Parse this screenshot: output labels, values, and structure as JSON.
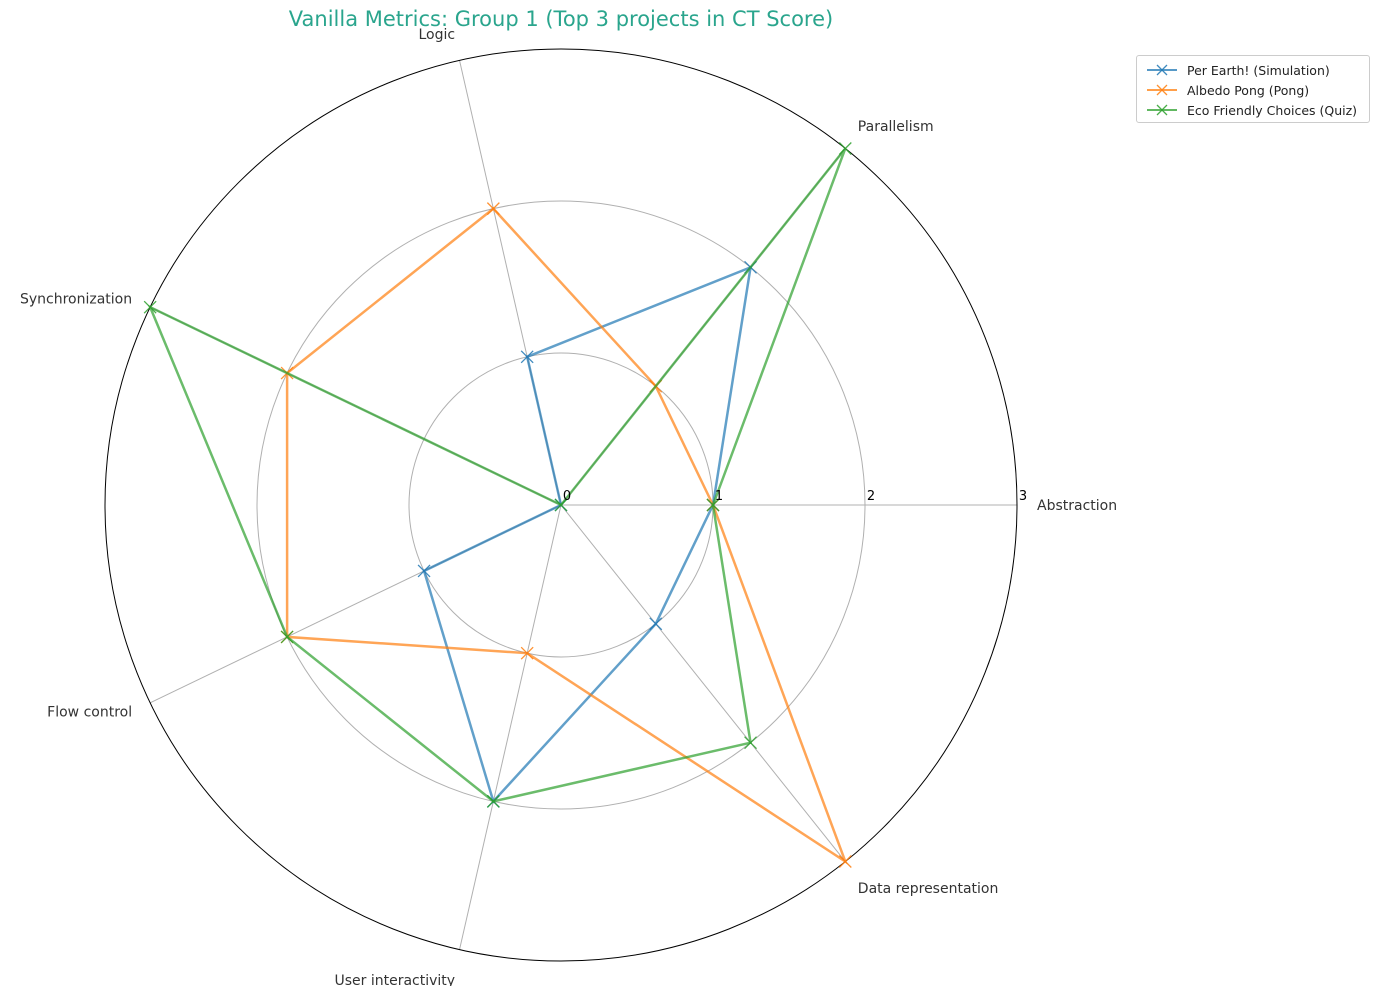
{
  "chart_data": {
    "type": "radar",
    "title": "Vanilla Metrics: Group 1 (Top 3 projects in CT Score)",
    "title_color": "#2aa58d",
    "categories": [
      "Abstraction",
      "Parallelism",
      "Logic",
      "Synchronization",
      "Flow control",
      "User interactivity",
      "Data representation"
    ],
    "rlim": [
      0,
      3
    ],
    "rticks": [
      "0",
      "1",
      "2",
      "3"
    ],
    "grid": true,
    "legend_position": "upper right, outside",
    "series": [
      {
        "name": "Per Earth! (Simulation)",
        "color": "#1f77b4",
        "values": [
          1,
          2,
          1,
          0,
          1,
          2,
          1
        ]
      },
      {
        "name": "Albedo Pong (Pong)",
        "color": "#ff7f0e",
        "values": [
          1,
          1,
          2,
          2,
          2,
          1,
          3
        ]
      },
      {
        "name": "Eco Friendly Choices (Quiz)",
        "color": "#2ca02c",
        "values": [
          1,
          3,
          0,
          3,
          2,
          2,
          2
        ]
      }
    ]
  }
}
